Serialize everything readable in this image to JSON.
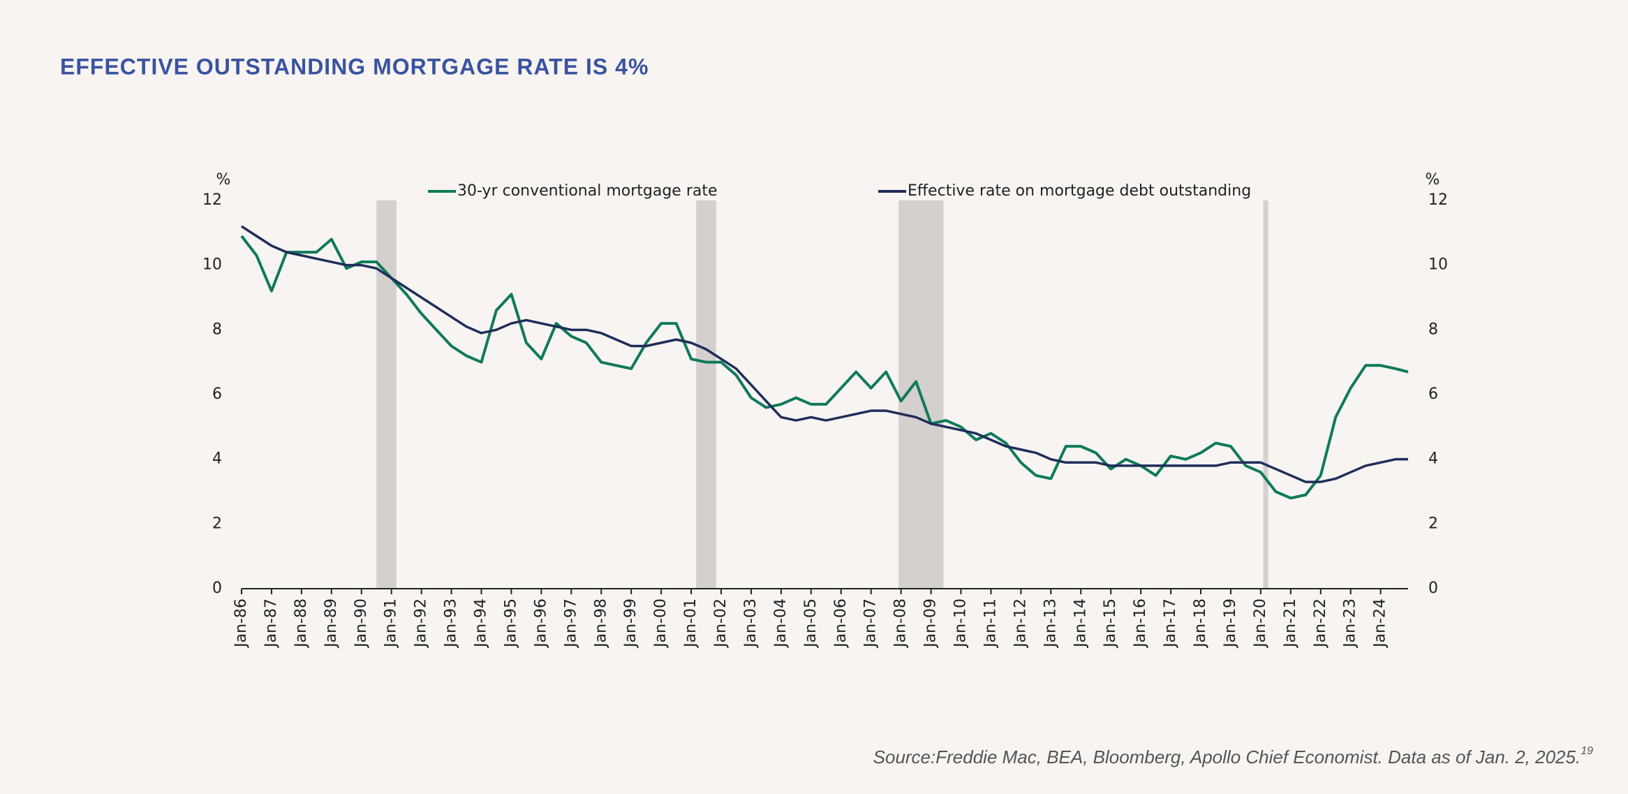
{
  "chart_data": {
    "type": "line",
    "title": "EFFECTIVE OUTSTANDING MORTGAGE RATE IS 4%",
    "ylabel": "%",
    "y2label": "%",
    "source": "Source:Freddie Mac, BEA, Bloomberg, Apollo Chief Economist. Data as of Jan. 2, 2025.",
    "source_note": "19",
    "x": [
      "Jan-86",
      "Jul-86",
      "Jan-87",
      "Jul-87",
      "Jan-88",
      "Jul-88",
      "Jan-89",
      "Jul-89",
      "Jan-90",
      "Jul-90",
      "Jan-91",
      "Jul-91",
      "Jan-92",
      "Jul-92",
      "Jan-93",
      "Jul-93",
      "Jan-94",
      "Jul-94",
      "Jan-95",
      "Jul-95",
      "Jan-96",
      "Jul-96",
      "Jan-97",
      "Jul-97",
      "Jan-98",
      "Jul-98",
      "Jan-99",
      "Jul-99",
      "Jan-00",
      "Jul-00",
      "Jan-01",
      "Jul-01",
      "Jan-02",
      "Jul-02",
      "Jan-03",
      "Jul-03",
      "Jan-04",
      "Jul-04",
      "Jan-05",
      "Jul-05",
      "Jan-06",
      "Jul-06",
      "Jan-07",
      "Jul-07",
      "Jan-08",
      "Jul-08",
      "Jan-09",
      "Jul-09",
      "Jan-10",
      "Jul-10",
      "Jan-11",
      "Jul-11",
      "Jan-12",
      "Jul-12",
      "Jan-13",
      "Jul-13",
      "Jan-14",
      "Jul-14",
      "Jan-15",
      "Jul-15",
      "Jan-16",
      "Jul-16",
      "Jan-17",
      "Jul-17",
      "Jan-18",
      "Jul-18",
      "Jan-19",
      "Jul-19",
      "Jan-20",
      "Jul-20",
      "Jan-21",
      "Jul-21",
      "Jan-22",
      "Jul-22",
      "Jan-23",
      "Jul-23",
      "Jan-24",
      "Jul-24",
      "Dec-24"
    ],
    "series": [
      {
        "name": "30-yr conventional mortgage rate",
        "color": "#0f7a5a",
        "values": [
          10.9,
          10.3,
          9.2,
          10.4,
          10.4,
          10.4,
          10.8,
          9.9,
          10.1,
          10.1,
          9.6,
          9.1,
          8.5,
          8.0,
          7.5,
          7.2,
          7.0,
          8.6,
          9.1,
          7.6,
          7.1,
          8.2,
          7.8,
          7.6,
          7.0,
          6.9,
          6.8,
          7.6,
          8.2,
          8.2,
          7.1,
          7.0,
          7.0,
          6.6,
          5.9,
          5.6,
          5.7,
          5.9,
          5.7,
          5.7,
          6.2,
          6.7,
          6.2,
          6.7,
          5.8,
          6.4,
          5.1,
          5.2,
          5.0,
          4.6,
          4.8,
          4.5,
          3.9,
          3.5,
          3.4,
          4.4,
          4.4,
          4.2,
          3.7,
          4.0,
          3.8,
          3.5,
          4.1,
          4.0,
          4.2,
          4.5,
          4.4,
          3.8,
          3.6,
          3.0,
          2.8,
          2.9,
          3.5,
          5.3,
          6.2,
          6.9,
          6.9,
          6.8,
          6.7
        ]
      },
      {
        "name": "Effective rate on mortgage debt outstanding",
        "color": "#1f2d5a",
        "values": [
          11.2,
          10.9,
          10.6,
          10.4,
          10.3,
          10.2,
          10.1,
          10.0,
          10.0,
          9.9,
          9.6,
          9.3,
          9.0,
          8.7,
          8.4,
          8.1,
          7.9,
          8.0,
          8.2,
          8.3,
          8.2,
          8.1,
          8.0,
          8.0,
          7.9,
          7.7,
          7.5,
          7.5,
          7.6,
          7.7,
          7.6,
          7.4,
          7.1,
          6.8,
          6.3,
          5.8,
          5.3,
          5.2,
          5.3,
          5.2,
          5.3,
          5.4,
          5.5,
          5.5,
          5.4,
          5.3,
          5.1,
          5.0,
          4.9,
          4.8,
          4.6,
          4.4,
          4.3,
          4.2,
          4.0,
          3.9,
          3.9,
          3.9,
          3.8,
          3.8,
          3.8,
          3.8,
          3.8,
          3.8,
          3.8,
          3.8,
          3.9,
          3.9,
          3.9,
          3.7,
          3.5,
          3.3,
          3.3,
          3.4,
          3.6,
          3.8,
          3.9,
          4.0,
          4.0
        ]
      }
    ],
    "shaded_periods": [
      [
        "Jul-90",
        "Mar-91"
      ],
      [
        "Mar-01",
        "Nov-01"
      ],
      [
        "Dec-07",
        "Jun-09"
      ],
      [
        "Feb-20",
        "Apr-20"
      ]
    ],
    "shade_color": "#d3d0cd",
    "xlim": [
      "Jan-86",
      "Dec-24"
    ],
    "xticks": [
      "Jan-86",
      "Jan-87",
      "Jan-88",
      "Jan-89",
      "Jan-90",
      "Jan-91",
      "Jan-92",
      "Jan-93",
      "Jan-94",
      "Jan-95",
      "Jan-96",
      "Jan-97",
      "Jan-98",
      "Jan-99",
      "Jan-00",
      "Jan-01",
      "Jan-02",
      "Jan-03",
      "Jan-04",
      "Jan-05",
      "Jan-06",
      "Jan-07",
      "Jan-08",
      "Jan-09",
      "Jan-10",
      "Jan-11",
      "Jan-12",
      "Jan-13",
      "Jan-14",
      "Jan-15",
      "Jan-16",
      "Jan-17",
      "Jan-18",
      "Jan-19",
      "Jan-20",
      "Jan-21",
      "Jan-22",
      "Jan-23",
      "Jan-24"
    ],
    "ylim": [
      0,
      12
    ],
    "yticks": [
      0,
      2,
      4,
      6,
      8,
      10,
      12
    ],
    "y2lim": [
      0,
      12
    ],
    "y2ticks": [
      0,
      2,
      4,
      6,
      8,
      10,
      12
    ],
    "grid": false
  }
}
